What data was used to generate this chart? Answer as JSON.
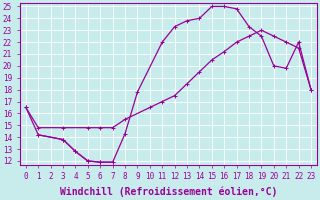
{
  "xlabel": "Windchill (Refroidissement éolien,°C)",
  "background_color": "#c8ecec",
  "grid_color": "#ffffff",
  "line_color": "#990099",
  "xlim": [
    -0.5,
    23.5
  ],
  "ylim": [
    11.7,
    25.3
  ],
  "xticks": [
    0,
    1,
    2,
    3,
    4,
    5,
    6,
    7,
    8,
    9,
    10,
    11,
    12,
    13,
    14,
    15,
    16,
    17,
    18,
    19,
    20,
    21,
    22,
    23
  ],
  "yticks": [
    12,
    13,
    14,
    15,
    16,
    17,
    18,
    19,
    20,
    21,
    22,
    23,
    24,
    25
  ],
  "curve1_x": [
    0,
    1,
    3,
    4,
    5,
    6,
    7,
    8,
    9,
    11,
    12,
    13,
    14,
    15,
    16,
    17,
    18,
    19,
    20,
    21,
    22,
    23
  ],
  "curve1_y": [
    16.5,
    14.2,
    13.8,
    12.8,
    12.0,
    11.9,
    11.9,
    14.3,
    17.8,
    22.0,
    23.3,
    23.8,
    24.0,
    25.0,
    25.0,
    24.8,
    23.3,
    22.5,
    20.0,
    19.8,
    22.0,
    18.0
  ],
  "curve2_x": [
    0,
    1,
    3,
    5,
    6,
    7,
    8,
    10,
    11,
    12,
    13,
    14,
    15,
    16,
    17,
    18,
    19,
    20,
    21,
    22,
    23
  ],
  "curve2_y": [
    16.5,
    14.8,
    14.8,
    14.8,
    14.8,
    14.8,
    15.5,
    16.5,
    17.0,
    17.5,
    18.5,
    19.5,
    20.5,
    21.2,
    22.0,
    22.5,
    23.0,
    22.5,
    22.0,
    21.5,
    18.0
  ],
  "curve3_x": [
    1,
    3,
    4,
    5,
    6,
    7
  ],
  "curve3_y": [
    14.2,
    13.8,
    12.8,
    12.0,
    11.9,
    11.9
  ],
  "marker": "+",
  "markersize": 3,
  "linewidth": 0.9,
  "tick_fontsize": 5.5,
  "xlabel_fontsize": 7,
  "tick_color": "#990099",
  "label_color": "#990099"
}
